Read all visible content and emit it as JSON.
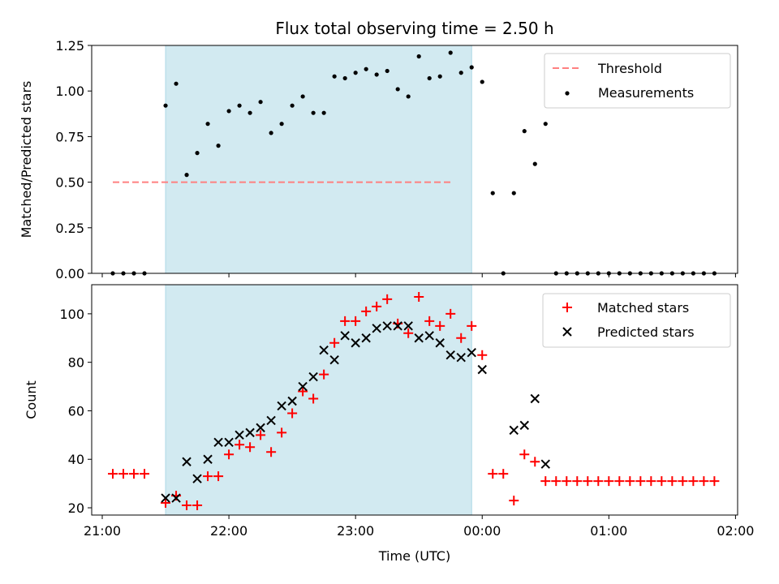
{
  "chart_data": [
    {
      "type": "scatter",
      "title": "Flux total observing time = 2.50 h",
      "xlabel": "",
      "ylabel": "Matched/Predicted stars",
      "ylim": [
        0,
        1.25
      ],
      "yticks": [
        "0.00",
        "0.25",
        "0.50",
        "0.75",
        "1.00",
        "1.25"
      ],
      "ytick_values": [
        0,
        0.25,
        0.5,
        0.75,
        1.0,
        1.25
      ],
      "xlim": [
        "20:55",
        "02:01"
      ],
      "xticks": [
        "21:00",
        "22:00",
        "23:00",
        "00:00",
        "01:00",
        "02:00"
      ],
      "shaded_region": {
        "from": "21:30",
        "to": "23:55",
        "color": "#add8e6"
      },
      "threshold": {
        "name": "Threshold",
        "value": 0.5,
        "from": "21:05",
        "to": "23:45",
        "color": "#ff8080"
      },
      "legend": {
        "location": "upper right",
        "entries": [
          "Threshold",
          "Measurements"
        ]
      },
      "series": [
        {
          "name": "Measurements",
          "marker": "dot",
          "color": "#000000",
          "x": [
            "21:05",
            "21:10",
            "21:15",
            "21:20",
            "21:30",
            "21:35",
            "21:40",
            "21:45",
            "21:50",
            "21:55",
            "22:00",
            "22:05",
            "22:10",
            "22:15",
            "22:20",
            "22:25",
            "22:30",
            "22:35",
            "22:40",
            "22:45",
            "22:50",
            "22:55",
            "23:00",
            "23:05",
            "23:10",
            "23:15",
            "23:20",
            "23:25",
            "23:30",
            "23:35",
            "23:40",
            "23:45",
            "23:50",
            "23:55",
            "00:00",
            "00:05",
            "00:10",
            "00:15",
            "00:20",
            "00:25",
            "00:30",
            "00:35",
            "00:40",
            "00:45",
            "00:50",
            "00:55",
            "01:00",
            "01:05",
            "01:10",
            "01:15",
            "01:20",
            "01:25",
            "01:30",
            "01:35",
            "01:40",
            "01:45",
            "01:50"
          ],
          "y": [
            0,
            0,
            0,
            0,
            0.92,
            1.04,
            0.54,
            0.66,
            0.82,
            0.7,
            0.89,
            0.92,
            0.88,
            0.94,
            0.77,
            0.82,
            0.92,
            0.97,
            0.88,
            0.88,
            1.08,
            1.07,
            1.1,
            1.12,
            1.09,
            1.11,
            1.01,
            0.97,
            1.19,
            1.07,
            1.08,
            1.21,
            1.1,
            1.13,
            1.05,
            0.44,
            0,
            0.44,
            0.78,
            0.6,
            0.82,
            0,
            0,
            0,
            0,
            0,
            0,
            0,
            0,
            0,
            0,
            0,
            0,
            0,
            0,
            0,
            0
          ]
        }
      ]
    },
    {
      "type": "scatter",
      "title": "",
      "xlabel": "Time (UTC)",
      "ylabel": "Count",
      "ylim": [
        17,
        112
      ],
      "yticks": [
        "20",
        "40",
        "60",
        "80",
        "100"
      ],
      "ytick_values": [
        20,
        40,
        60,
        80,
        100
      ],
      "xlim": [
        "20:55",
        "02:01"
      ],
      "xticks": [
        "21:00",
        "22:00",
        "23:00",
        "00:00",
        "01:00",
        "02:00"
      ],
      "shaded_region": {
        "from": "21:30",
        "to": "23:55",
        "color": "#add8e6"
      },
      "legend": {
        "location": "upper right",
        "entries": [
          "Matched stars",
          "Predicted stars"
        ]
      },
      "series": [
        {
          "name": "Matched stars",
          "marker": "plus",
          "color": "#ff0000",
          "x": [
            "21:05",
            "21:10",
            "21:15",
            "21:20",
            "21:30",
            "21:35",
            "21:40",
            "21:45",
            "21:50",
            "21:55",
            "22:00",
            "22:05",
            "22:10",
            "22:15",
            "22:20",
            "22:25",
            "22:30",
            "22:35",
            "22:40",
            "22:45",
            "22:50",
            "22:55",
            "23:00",
            "23:05",
            "23:10",
            "23:15",
            "23:20",
            "23:25",
            "23:30",
            "23:35",
            "23:40",
            "23:45",
            "23:50",
            "23:55",
            "00:00",
            "00:05",
            "00:10",
            "00:15",
            "00:20",
            "00:25",
            "00:30",
            "00:35",
            "00:40",
            "00:45",
            "00:50",
            "00:55",
            "01:00",
            "01:05",
            "01:10",
            "01:15",
            "01:20",
            "01:25",
            "01:30",
            "01:35",
            "01:40",
            "01:45",
            "01:50"
          ],
          "y": [
            34,
            34,
            34,
            34,
            22,
            25,
            21,
            21,
            33,
            33,
            42,
            46,
            45,
            50,
            43,
            51,
            59,
            68,
            65,
            75,
            88,
            97,
            97,
            101,
            103,
            106,
            96,
            92,
            107,
            97,
            95,
            100,
            90,
            95,
            83,
            34,
            34,
            23,
            42,
            39,
            31,
            31,
            31,
            31,
            31,
            31,
            31,
            31,
            31,
            31,
            31,
            31,
            31,
            31,
            31,
            31,
            31
          ]
        },
        {
          "name": "Predicted stars",
          "marker": "x",
          "color": "#000000",
          "x": [
            "21:30",
            "21:35",
            "21:40",
            "21:45",
            "21:50",
            "21:55",
            "22:00",
            "22:05",
            "22:10",
            "22:15",
            "22:20",
            "22:25",
            "22:30",
            "22:35",
            "22:40",
            "22:45",
            "22:50",
            "22:55",
            "23:00",
            "23:05",
            "23:10",
            "23:15",
            "23:20",
            "23:25",
            "23:30",
            "23:35",
            "23:40",
            "23:45",
            "23:50",
            "23:55",
            "00:00",
            "00:15",
            "00:20",
            "00:25",
            "00:30"
          ],
          "y": [
            24,
            24,
            39,
            32,
            40,
            47,
            47,
            50,
            51,
            53,
            56,
            62,
            64,
            70,
            74,
            85,
            81,
            91,
            88,
            90,
            94,
            95,
            95,
            95,
            90,
            91,
            88,
            83,
            82,
            84,
            77,
            52,
            54,
            65,
            38
          ]
        }
      ]
    }
  ]
}
